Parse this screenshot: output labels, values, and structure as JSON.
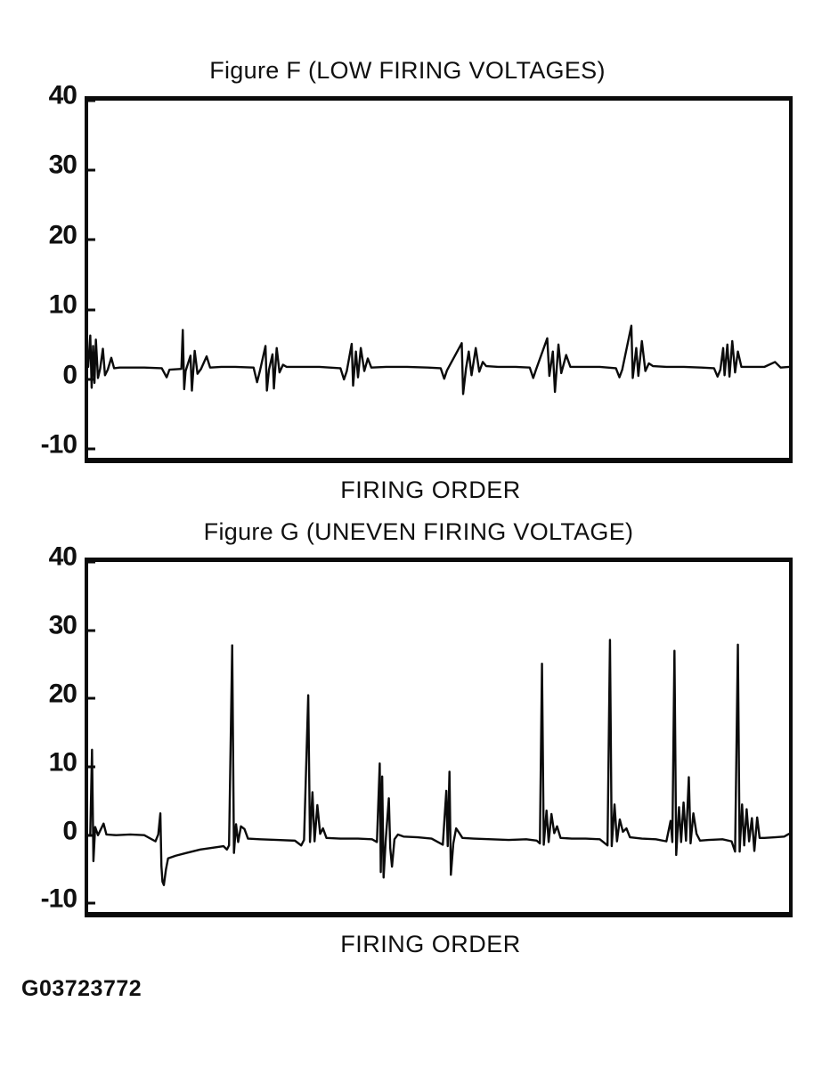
{
  "page": {
    "footer_code": "G03723772"
  },
  "colors": {
    "ink": "#0b0b0b",
    "paper": "#ffffff"
  },
  "chart_data": [
    {
      "id": "figure-f",
      "type": "line",
      "title": "Figure F (LOW FIRING VOLTAGES)",
      "xlabel": "FIRING ORDER",
      "ylabel": "",
      "yticks": [
        40,
        30,
        20,
        10,
        0,
        -10
      ],
      "ylim": [
        -11.25,
        40
      ],
      "grid": false,
      "legend": "none",
      "description": "Ignition scope pattern: all cylinders firing at uniformly low voltage (~2 kV baseline, spikes ~4-7 kV)",
      "points": [
        [
          0,
          1.8
        ],
        [
          0.3,
          6.3
        ],
        [
          0.5,
          -1.2
        ],
        [
          0.7,
          4.8
        ],
        [
          0.9,
          -0.5
        ],
        [
          1.1,
          5.7
        ],
        [
          1.4,
          0.2
        ],
        [
          1.7,
          1.5
        ],
        [
          2.1,
          4.4
        ],
        [
          2.4,
          0.6
        ],
        [
          2.8,
          1.4
        ],
        [
          3.3,
          3.1
        ],
        [
          3.7,
          1.6
        ],
        [
          4.5,
          1.7
        ],
        [
          6,
          1.7
        ],
        [
          8,
          1.7
        ],
        [
          10.5,
          1.6
        ],
        [
          11.2,
          0.3
        ],
        [
          11.6,
          1.4
        ],
        [
          13.3,
          1.5
        ],
        [
          13.5,
          7.1
        ],
        [
          13.7,
          -1.4
        ],
        [
          13.9,
          1.2
        ],
        [
          14.6,
          3.4
        ],
        [
          14.8,
          -1.6
        ],
        [
          15.2,
          4.1
        ],
        [
          15.6,
          0.8
        ],
        [
          16.1,
          1.5
        ],
        [
          16.9,
          3.3
        ],
        [
          17.4,
          1.7
        ],
        [
          19,
          1.8
        ],
        [
          21,
          1.8
        ],
        [
          23.6,
          1.7
        ],
        [
          24.1,
          -0.4
        ],
        [
          24.5,
          1.2
        ],
        [
          25.3,
          4.8
        ],
        [
          25.5,
          -1.6
        ],
        [
          25.8,
          1.4
        ],
        [
          26.3,
          3.6
        ],
        [
          26.5,
          -1.3
        ],
        [
          26.9,
          4.5
        ],
        [
          27.3,
          1
        ],
        [
          27.8,
          2.1
        ],
        [
          28.3,
          1.8
        ],
        [
          30,
          1.8
        ],
        [
          33,
          1.8
        ],
        [
          36,
          1.6
        ],
        [
          36.5,
          0
        ],
        [
          36.9,
          1.2
        ],
        [
          37.6,
          5.1
        ],
        [
          37.8,
          -0.9
        ],
        [
          38.2,
          4
        ],
        [
          38.5,
          0.3
        ],
        [
          38.9,
          4.5
        ],
        [
          39.4,
          1.2
        ],
        [
          39.9,
          3
        ],
        [
          40.4,
          1.7
        ],
        [
          42.5,
          1.8
        ],
        [
          45.5,
          1.8
        ],
        [
          48.5,
          1.7
        ],
        [
          50.3,
          1.6
        ],
        [
          50.8,
          0.1
        ],
        [
          51.2,
          1.3
        ],
        [
          53.3,
          5.2
        ],
        [
          53.5,
          -2.1
        ],
        [
          53.9,
          1.5
        ],
        [
          54.3,
          4
        ],
        [
          54.7,
          0.6
        ],
        [
          55.3,
          4.5
        ],
        [
          55.8,
          1.1
        ],
        [
          56.3,
          2.5
        ],
        [
          56.8,
          1.9
        ],
        [
          58.5,
          1.8
        ],
        [
          61,
          1.8
        ],
        [
          63,
          1.7
        ],
        [
          63.5,
          0.2
        ],
        [
          63.9,
          1.4
        ],
        [
          65.5,
          5.9
        ],
        [
          65.8,
          0.5
        ],
        [
          66.3,
          4
        ],
        [
          66.6,
          -1.8
        ],
        [
          67.1,
          5
        ],
        [
          67.5,
          0.9
        ],
        [
          68.2,
          3.5
        ],
        [
          68.8,
          1.8
        ],
        [
          70.5,
          1.8
        ],
        [
          73,
          1.8
        ],
        [
          75.3,
          1.6
        ],
        [
          75.8,
          0.3
        ],
        [
          76.2,
          1.4
        ],
        [
          77.5,
          7.7
        ],
        [
          77.7,
          0.2
        ],
        [
          78.2,
          4.5
        ],
        [
          78.5,
          0.5
        ],
        [
          79,
          5.5
        ],
        [
          79.5,
          1.2
        ],
        [
          80,
          2.3
        ],
        [
          80.6,
          1.9
        ],
        [
          82.5,
          1.8
        ],
        [
          85,
          1.8
        ],
        [
          87.5,
          1.7
        ],
        [
          89.3,
          1.6
        ],
        [
          89.8,
          0.4
        ],
        [
          90.2,
          1.4
        ],
        [
          90.6,
          4.5
        ],
        [
          90.8,
          0.6
        ],
        [
          91.2,
          5
        ],
        [
          91.5,
          0.4
        ],
        [
          91.9,
          5.5
        ],
        [
          92.3,
          1
        ],
        [
          92.7,
          4
        ],
        [
          93.2,
          1.8
        ],
        [
          94.5,
          1.8
        ],
        [
          96.5,
          1.8
        ],
        [
          98,
          2.5
        ],
        [
          98.8,
          1.7
        ],
        [
          100,
          1.8
        ]
      ]
    },
    {
      "id": "figure-g",
      "type": "line",
      "title": "Figure G (UNEVEN FIRING VOLTAGE)",
      "xlabel": "FIRING ORDER",
      "ylabel": "",
      "yticks": [
        40,
        30,
        20,
        10,
        0,
        -10
      ],
      "ylim": [
        -11.25,
        40
      ],
      "grid": false,
      "legend": "none",
      "description": "Ignition scope pattern: firing voltages vary widely between cylinders (spikes from ~7 kV up to ~28 kV, with negative excursions to ~-7 kV)",
      "points": [
        [
          0,
          0
        ],
        [
          0.3,
          0.1
        ],
        [
          0.55,
          12.5
        ],
        [
          0.75,
          -3.8
        ],
        [
          1,
          1.2
        ],
        [
          1.4,
          0
        ],
        [
          2.2,
          1.7
        ],
        [
          2.6,
          0.1
        ],
        [
          4,
          0
        ],
        [
          6,
          0.1
        ],
        [
          8,
          0
        ],
        [
          9.6,
          -0.9
        ],
        [
          10,
          0.1
        ],
        [
          10.3,
          3.2
        ],
        [
          10.45,
          -4.5
        ],
        [
          10.6,
          -6.8
        ],
        [
          10.8,
          -7.3
        ],
        [
          11.1,
          -5
        ],
        [
          11.4,
          -3.4
        ],
        [
          12.5,
          -3
        ],
        [
          14,
          -2.6
        ],
        [
          16,
          -2.1
        ],
        [
          18,
          -1.8
        ],
        [
          19.3,
          -1.6
        ],
        [
          19.8,
          -2.1
        ],
        [
          20.1,
          -1.5
        ],
        [
          20.55,
          27.8
        ],
        [
          20.8,
          -2.6
        ],
        [
          21.1,
          1.6
        ],
        [
          21.4,
          -1
        ],
        [
          21.8,
          1.3
        ],
        [
          22.3,
          0.9
        ],
        [
          22.8,
          -0.5
        ],
        [
          24.5,
          -0.6
        ],
        [
          27,
          -0.7
        ],
        [
          29.5,
          -0.8
        ],
        [
          30.4,
          -1.5
        ],
        [
          30.8,
          -0.7
        ],
        [
          31.4,
          20.5
        ],
        [
          31.65,
          -1
        ],
        [
          32,
          6.3
        ],
        [
          32.3,
          -0.9
        ],
        [
          32.7,
          4.4
        ],
        [
          33.1,
          0.2
        ],
        [
          33.5,
          1
        ],
        [
          34,
          -0.4
        ],
        [
          36,
          -0.5
        ],
        [
          38.5,
          -0.5
        ],
        [
          40.5,
          -0.6
        ],
        [
          41.2,
          -1
        ],
        [
          41.6,
          10.5
        ],
        [
          41.75,
          -5.4
        ],
        [
          41.95,
          8.6
        ],
        [
          42.15,
          -6.2
        ],
        [
          42.45,
          -0.8
        ],
        [
          42.9,
          5.4
        ],
        [
          43.1,
          -1.9
        ],
        [
          43.35,
          -4.6
        ],
        [
          43.7,
          -0.6
        ],
        [
          44.2,
          0.1
        ],
        [
          45,
          -0.2
        ],
        [
          47,
          -0.3
        ],
        [
          49,
          -0.5
        ],
        [
          50.6,
          -1.4
        ],
        [
          51.1,
          6.5
        ],
        [
          51.3,
          -1.6
        ],
        [
          51.55,
          9.3
        ],
        [
          51.75,
          -5.8
        ],
        [
          52.1,
          -1.2
        ],
        [
          52.5,
          1
        ],
        [
          52.9,
          0.4
        ],
        [
          53.4,
          -0.4
        ],
        [
          55,
          -0.5
        ],
        [
          57.5,
          -0.6
        ],
        [
          60,
          -0.7
        ],
        [
          62.5,
          -0.6
        ],
        [
          64,
          -0.8
        ],
        [
          64.45,
          -1.2
        ],
        [
          64.75,
          25.1
        ],
        [
          65,
          -1.4
        ],
        [
          65.4,
          3.6
        ],
        [
          65.7,
          -1
        ],
        [
          66.1,
          3.1
        ],
        [
          66.5,
          0.3
        ],
        [
          66.9,
          1.3
        ],
        [
          67.4,
          -0.4
        ],
        [
          69,
          -0.5
        ],
        [
          71,
          -0.5
        ],
        [
          73,
          -0.6
        ],
        [
          74.1,
          -1.5
        ],
        [
          74.45,
          28.6
        ],
        [
          74.7,
          -1.6
        ],
        [
          75.1,
          4.5
        ],
        [
          75.45,
          -0.9
        ],
        [
          75.85,
          2.3
        ],
        [
          76.3,
          0.5
        ],
        [
          76.8,
          1
        ],
        [
          77.3,
          -0.3
        ],
        [
          79,
          -0.5
        ],
        [
          81,
          -0.6
        ],
        [
          82.5,
          -0.9
        ],
        [
          83.1,
          2.1
        ],
        [
          83.35,
          -1
        ],
        [
          83.65,
          27
        ],
        [
          83.9,
          -2.9
        ],
        [
          84.3,
          4.1
        ],
        [
          84.6,
          -1
        ],
        [
          84.95,
          4.8
        ],
        [
          85.3,
          -0.8
        ],
        [
          85.7,
          8.5
        ],
        [
          85.95,
          -1.2
        ],
        [
          86.35,
          3.2
        ],
        [
          86.8,
          0.2
        ],
        [
          87.3,
          -0.8
        ],
        [
          88.5,
          -0.7
        ],
        [
          90.5,
          -0.6
        ],
        [
          91.8,
          -0.9
        ],
        [
          92.3,
          -2.4
        ],
        [
          92.7,
          27.9
        ],
        [
          92.95,
          -2.4
        ],
        [
          93.3,
          4.5
        ],
        [
          93.6,
          -1.5
        ],
        [
          93.95,
          3.8
        ],
        [
          94.3,
          -0.9
        ],
        [
          94.7,
          2.5
        ],
        [
          95.05,
          -2.3
        ],
        [
          95.45,
          2.6
        ],
        [
          95.8,
          -0.4
        ],
        [
          96.5,
          -0.4
        ],
        [
          98,
          -0.3
        ],
        [
          99.3,
          -0.2
        ],
        [
          100,
          0.2
        ]
      ]
    }
  ]
}
